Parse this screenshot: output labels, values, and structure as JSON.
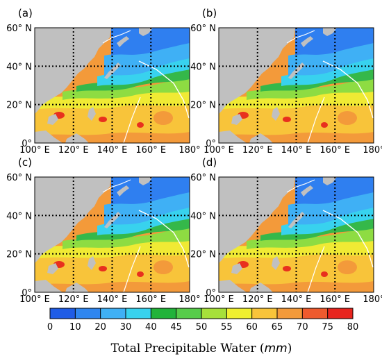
{
  "panels": [
    {
      "label": "(a)"
    },
    {
      "label": "(b)"
    },
    {
      "label": "(c)"
    },
    {
      "label": "(d)"
    }
  ],
  "lat_ticks": [
    "60°  N",
    "40°  N",
    "20°  N",
    "0°"
  ],
  "lon_ticks": [
    "100°  E",
    "120°  E",
    "140°  E",
    "160°  E",
    "180°"
  ],
  "colorbar": {
    "ticks": [
      "0",
      "10",
      "20",
      "30",
      "40",
      "45",
      "50",
      "55",
      "60",
      "65",
      "70",
      "75",
      "80"
    ],
    "colors": [
      "#1f5ce6",
      "#2f86f0",
      "#3fb0f5",
      "#38d2ee",
      "#22b33a",
      "#57cc4a",
      "#a6e03a",
      "#f0f030",
      "#f8c43a",
      "#f39a3a",
      "#ee5a2e",
      "#e8241e",
      "#7a3ea0"
    ],
    "title_prefix": "Total Precipitable Water (",
    "title_unit": "mm",
    "title_suffix": ")"
  },
  "colors": {
    "land": "#c0c0c0",
    "deep_blue": "#2f7ff0",
    "blue": "#3fb0f5",
    "cyan": "#38d2ee",
    "green": "#35b84a",
    "light_green": "#8edc42",
    "yellow": "#f0ea34",
    "light_orange": "#f8c43a",
    "orange": "#f39a3a",
    "red": "#e8301e"
  }
}
